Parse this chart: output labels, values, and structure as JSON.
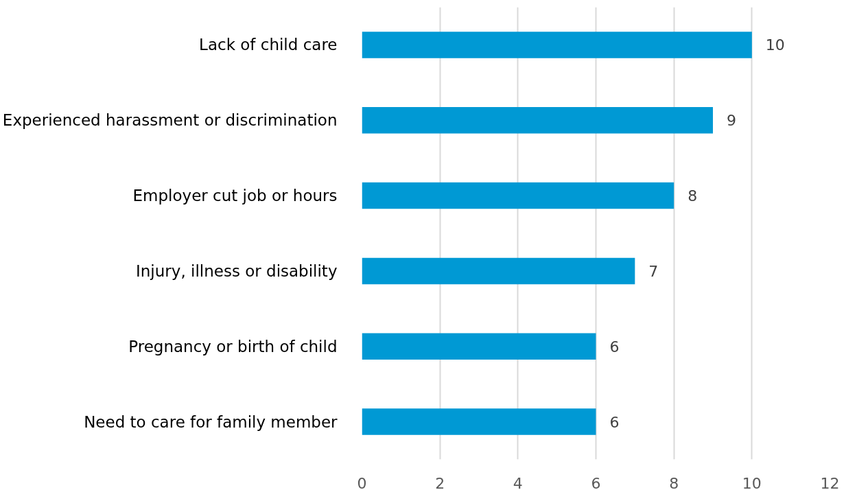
{
  "chart_data": {
    "type": "bar",
    "orientation": "horizontal",
    "categories": [
      "Lack of child care",
      "Experienced harassment or discrimination",
      "Employer cut job or hours",
      "Injury, illness or disability",
      "Pregnancy or birth of child",
      "Need to care for family member"
    ],
    "values": [
      10,
      9,
      8,
      7,
      6,
      6
    ],
    "color": "#0099d4",
    "xlim": [
      0,
      12
    ],
    "xticks": [
      0,
      2,
      4,
      6,
      8,
      10,
      12
    ],
    "grid": "x",
    "data_labels": true
  }
}
